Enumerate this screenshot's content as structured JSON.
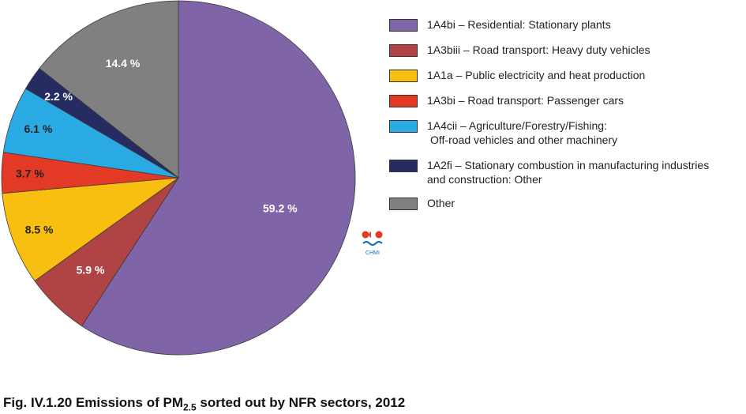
{
  "chart_data": {
    "type": "pie",
    "start_angle_deg": 0,
    "direction": "clockwise",
    "slices": [
      {
        "label": "1A4bi  – Residential: Stationary plants",
        "value": 59.2,
        "display": "59.2 %",
        "color": "#8064a8",
        "label_color": "#ffffff"
      },
      {
        "label": "1A3biii – Road transport: Heavy duty vehicles",
        "value": 5.9,
        "display": "5.9 %",
        "color": "#b04444",
        "label_color": "#ffffff"
      },
      {
        "label": "1A1a – Public electricity and heat production",
        "value": 8.5,
        "display": "8.5 %",
        "color": "#f9bf10",
        "label_color": "#222222"
      },
      {
        "label": "1A3bi – Road transport: Passenger cars",
        "value": 3.7,
        "display": "3.7 %",
        "color": "#e43a25",
        "label_color": "#222222"
      },
      {
        "label": "1A4cii – Agriculture/Forestry/Fishing: Off-road vehicles and other machinery",
        "value": 6.1,
        "display": "6.1 %",
        "color": "#2aaae2",
        "label_color": "#222222"
      },
      {
        "label": "1A2fi – Stationary combustion in manufacturing industries and construction: Other",
        "value": 2.2,
        "display": "2.2 %",
        "color": "#262b62",
        "label_color": "#ffffff"
      },
      {
        "label": "Other",
        "value": 14.4,
        "display": "14.4 %",
        "color": "#808080",
        "label_color": "#ffffff"
      }
    ],
    "legend_position": "right"
  },
  "legend": [
    {
      "lines": [
        "1A4bi  – Residential: Stationary plants"
      ]
    },
    {
      "lines": [
        "1A3biii – Road transport: Heavy duty vehicles"
      ]
    },
    {
      "lines": [
        "1A1a – Public electricity and heat production"
      ]
    },
    {
      "lines": [
        "1A3bi – Road transport: Passenger cars"
      ]
    },
    {
      "lines": [
        "1A4cii – Agriculture/Forestry/Fishing:",
        "Off-road vehicles and other machinery"
      ]
    },
    {
      "lines": [
        "1A2fi – Stationary combustion in manufacturing industries",
        "and construction: Other"
      ]
    },
    {
      "lines": [
        "Other"
      ]
    }
  ],
  "logo": {
    "text": "CHMI"
  },
  "caption": {
    "prefix": "Fig. IV.1.20  Emissions of PM",
    "subscript": "2.5",
    "suffix": " sorted out by NFR sectors, 2012"
  }
}
